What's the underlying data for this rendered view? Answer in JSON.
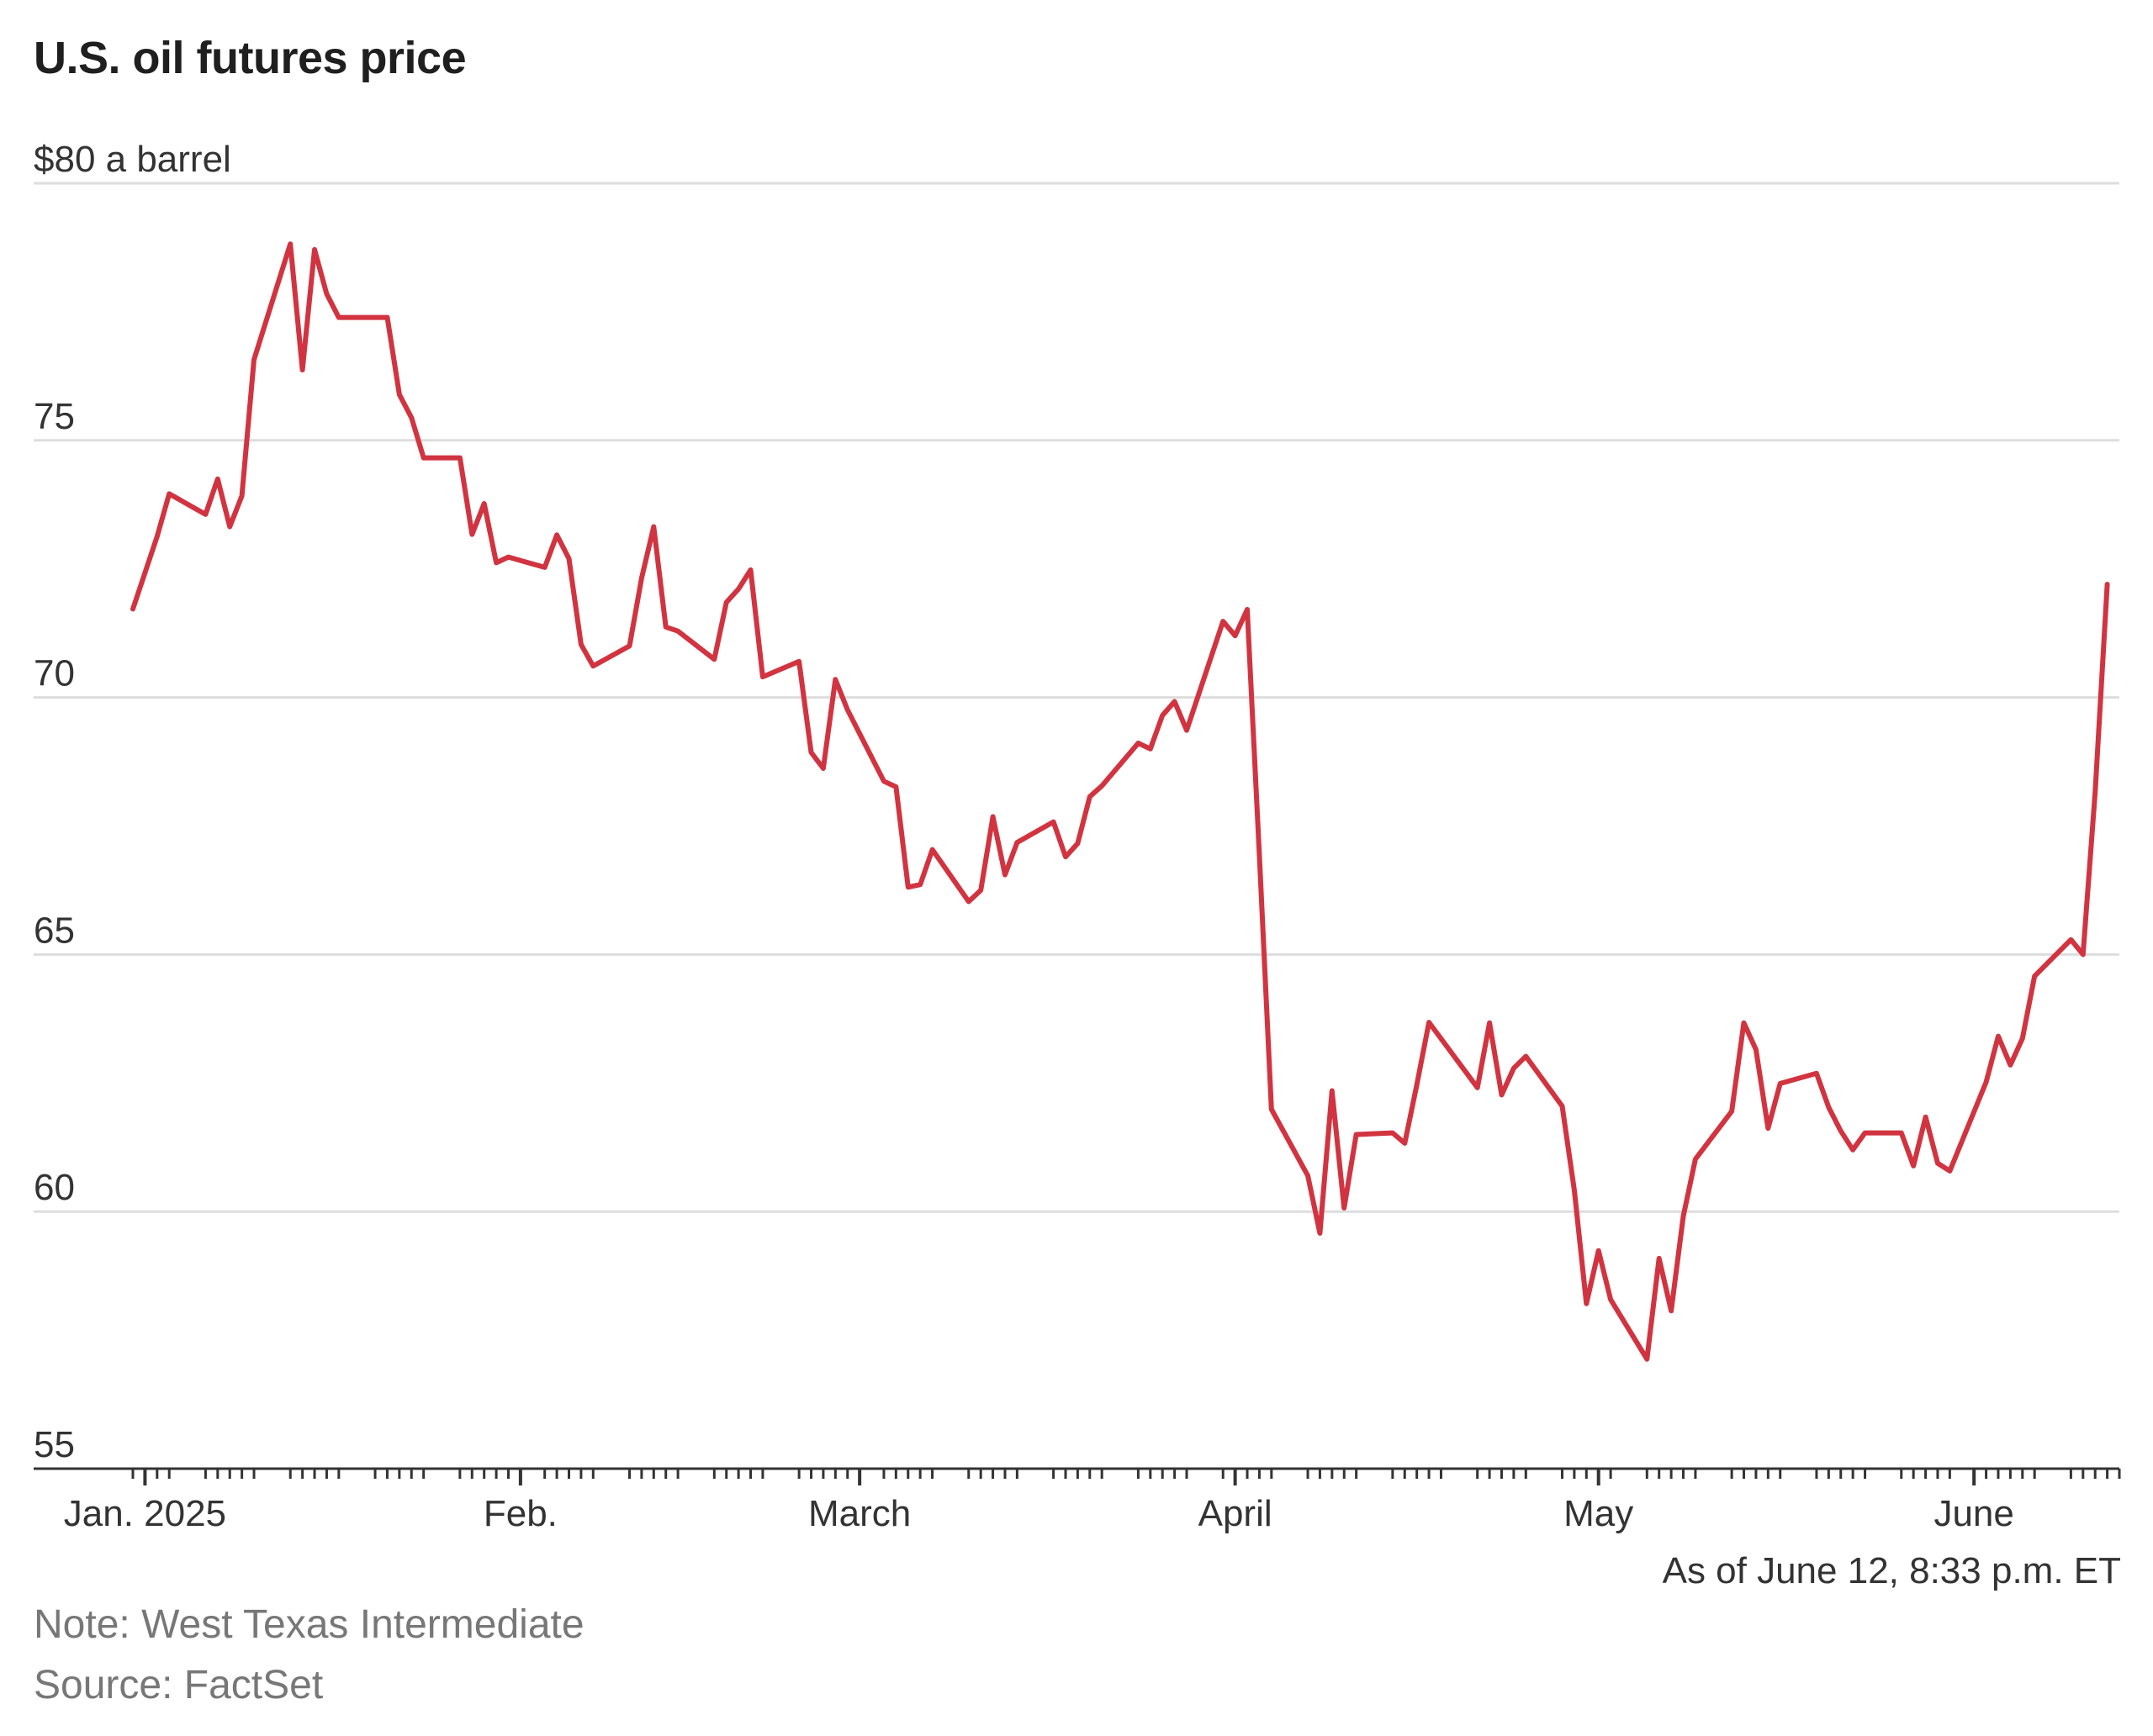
{
  "title": "U.S. oil futures price",
  "unit_label": "$80 a barrel",
  "as_of": "As of June 12, 8:33 p.m. ET",
  "note": "Note: West Texas Intermediate",
  "source": "Source: FactSet",
  "colors": {
    "line": "#d13440",
    "grid": "#dddddd",
    "axis": "#333333"
  },
  "chart_data": {
    "type": "line",
    "ylim": [
      55,
      80
    ],
    "y_ticks": [
      75,
      70,
      65,
      60,
      55
    ],
    "x_labels": [
      {
        "label": "Jan. 2025",
        "date": "2025-01-01"
      },
      {
        "label": "Feb.",
        "date": "2025-02-01"
      },
      {
        "label": "March",
        "date": "2025-03-01"
      },
      {
        "label": "April",
        "date": "2025-04-01"
      },
      {
        "label": "May",
        "date": "2025-05-01"
      },
      {
        "label": "June",
        "date": "2025-06-01"
      }
    ],
    "x_range": [
      "2024-12-31",
      "2025-06-13"
    ],
    "grid": "horizontal",
    "series": [
      {
        "values": [
          [
            "2024-12-31",
            71.72
          ],
          [
            "2025-01-02",
            73.13
          ],
          [
            "2025-01-03",
            73.96
          ],
          [
            "2025-01-06",
            73.56
          ],
          [
            "2025-01-07",
            74.25
          ],
          [
            "2025-01-08",
            73.32
          ],
          [
            "2025-01-09",
            73.92
          ],
          [
            "2025-01-10",
            76.57
          ],
          [
            "2025-01-13",
            78.82
          ],
          [
            "2025-01-14",
            76.37
          ],
          [
            "2025-01-15",
            78.71
          ],
          [
            "2025-01-16",
            77.85
          ],
          [
            "2025-01-17",
            77.39
          ],
          [
            "2025-01-21",
            77.39
          ],
          [
            "2025-01-22",
            75.89
          ],
          [
            "2025-01-23",
            75.44
          ],
          [
            "2025-01-24",
            74.66
          ],
          [
            "2025-01-27",
            74.66
          ],
          [
            "2025-01-28",
            73.17
          ],
          [
            "2025-01-29",
            73.77
          ],
          [
            "2025-01-30",
            72.62
          ],
          [
            "2025-01-31",
            72.73
          ],
          [
            "2025-02-03",
            72.53
          ],
          [
            "2025-02-04",
            73.16
          ],
          [
            "2025-02-05",
            72.7
          ],
          [
            "2025-02-06",
            71.03
          ],
          [
            "2025-02-07",
            70.61
          ],
          [
            "2025-02-10",
            71.0
          ],
          [
            "2025-02-11",
            72.32
          ],
          [
            "2025-02-12",
            73.32
          ],
          [
            "2025-02-13",
            71.37
          ],
          [
            "2025-02-14",
            71.29
          ],
          [
            "2025-02-17",
            70.74
          ],
          [
            "2025-02-18",
            71.85
          ],
          [
            "2025-02-19",
            72.11
          ],
          [
            "2025-02-20",
            72.48
          ],
          [
            "2025-02-21",
            70.4
          ],
          [
            "2025-02-24",
            70.7
          ],
          [
            "2025-02-25",
            68.93
          ],
          [
            "2025-02-26",
            68.62
          ],
          [
            "2025-02-27",
            70.35
          ],
          [
            "2025-02-28",
            69.76
          ],
          [
            "2025-03-03",
            68.37
          ],
          [
            "2025-03-04",
            68.26
          ],
          [
            "2025-03-05",
            66.31
          ],
          [
            "2025-03-06",
            66.36
          ],
          [
            "2025-03-07",
            67.04
          ],
          [
            "2025-03-10",
            66.03
          ],
          [
            "2025-03-11",
            66.25
          ],
          [
            "2025-03-12",
            67.68
          ],
          [
            "2025-03-13",
            66.55
          ],
          [
            "2025-03-14",
            67.18
          ],
          [
            "2025-03-17",
            67.58
          ],
          [
            "2025-03-18",
            66.9
          ],
          [
            "2025-03-19",
            67.16
          ],
          [
            "2025-03-20",
            68.07
          ],
          [
            "2025-03-21",
            68.28
          ],
          [
            "2025-03-24",
            69.11
          ],
          [
            "2025-03-25",
            69.0
          ],
          [
            "2025-03-26",
            69.65
          ],
          [
            "2025-03-27",
            69.92
          ],
          [
            "2025-03-28",
            69.36
          ],
          [
            "2025-03-31",
            71.48
          ],
          [
            "2025-04-01",
            71.2
          ],
          [
            "2025-04-02",
            71.71
          ],
          [
            "2025-04-03",
            66.95
          ],
          [
            "2025-04-04",
            61.99
          ],
          [
            "2025-04-07",
            60.7
          ],
          [
            "2025-04-08",
            59.58
          ],
          [
            "2025-04-09",
            62.35
          ],
          [
            "2025-04-10",
            60.07
          ],
          [
            "2025-04-11",
            61.5
          ],
          [
            "2025-04-14",
            61.53
          ],
          [
            "2025-04-15",
            61.33
          ],
          [
            "2025-04-16",
            62.47
          ],
          [
            "2025-04-17",
            63.68
          ],
          [
            "2025-04-21",
            62.41
          ],
          [
            "2025-04-22",
            63.67
          ],
          [
            "2025-04-23",
            62.27
          ],
          [
            "2025-04-24",
            62.79
          ],
          [
            "2025-04-25",
            63.02
          ],
          [
            "2025-04-28",
            62.05
          ],
          [
            "2025-04-29",
            60.42
          ],
          [
            "2025-04-30",
            58.21
          ],
          [
            "2025-05-01",
            59.24
          ],
          [
            "2025-05-02",
            58.29
          ],
          [
            "2025-05-05",
            57.13
          ],
          [
            "2025-05-06",
            59.09
          ],
          [
            "2025-05-07",
            58.07
          ],
          [
            "2025-05-08",
            59.91
          ],
          [
            "2025-05-09",
            61.02
          ],
          [
            "2025-05-12",
            61.95
          ],
          [
            "2025-05-13",
            63.67
          ],
          [
            "2025-05-14",
            63.15
          ],
          [
            "2025-05-15",
            61.62
          ],
          [
            "2025-05-16",
            62.49
          ],
          [
            "2025-05-19",
            62.69
          ],
          [
            "2025-05-20",
            62.03
          ],
          [
            "2025-05-21",
            61.57
          ],
          [
            "2025-05-22",
            61.2
          ],
          [
            "2025-05-23",
            61.53
          ],
          [
            "2025-05-26",
            61.53
          ],
          [
            "2025-05-27",
            60.89
          ],
          [
            "2025-05-28",
            61.84
          ],
          [
            "2025-05-29",
            60.94
          ],
          [
            "2025-05-30",
            60.79
          ],
          [
            "2025-06-02",
            62.52
          ],
          [
            "2025-06-03",
            63.41
          ],
          [
            "2025-06-04",
            62.85
          ],
          [
            "2025-06-05",
            63.37
          ],
          [
            "2025-06-06",
            64.58
          ],
          [
            "2025-06-09",
            65.29
          ],
          [
            "2025-06-10",
            65.0
          ],
          [
            "2025-06-11",
            68.15
          ],
          [
            "2025-06-12",
            72.2
          ]
        ]
      }
    ]
  }
}
